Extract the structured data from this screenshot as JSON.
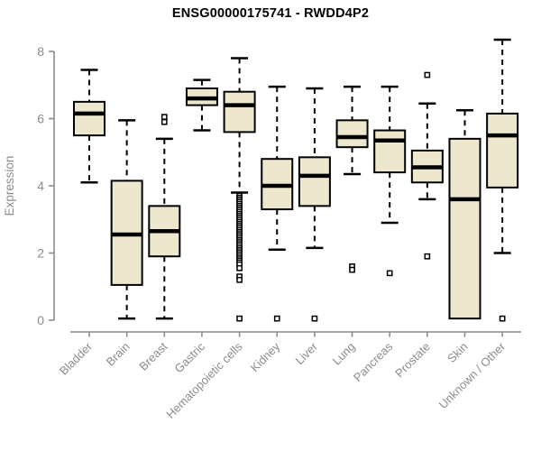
{
  "title": "ENSG00000175741 - RWDD4P2",
  "chart_data": {
    "type": "boxplot",
    "title": "ENSG00000175741 - RWDD4P2",
    "xlabel": "",
    "ylabel": "Expression",
    "ylim": [
      0,
      8
    ],
    "yticks": [
      0,
      2,
      4,
      6,
      8
    ],
    "grid": false,
    "legend": "none",
    "categories": [
      "Bladder",
      "Brain",
      "Breast",
      "Gastric",
      "Hematopoietic cells",
      "Kidney",
      "Liver",
      "Lung",
      "Pancreas",
      "Prostate",
      "Skin",
      "Unknown / Other"
    ],
    "series": [
      {
        "name": "Bladder",
        "whisker_low": 4.1,
        "q1": 5.5,
        "median": 6.15,
        "q3": 6.5,
        "whisker_high": 7.45,
        "outliers": []
      },
      {
        "name": "Brain",
        "whisker_low": 0.05,
        "q1": 1.05,
        "median": 2.55,
        "q3": 4.15,
        "whisker_high": 5.95,
        "outliers": []
      },
      {
        "name": "Breast",
        "whisker_low": 0.05,
        "q1": 1.9,
        "median": 2.65,
        "q3": 3.4,
        "whisker_high": 5.4,
        "outliers": [
          6.05,
          5.9
        ]
      },
      {
        "name": "Gastric",
        "whisker_low": 5.65,
        "q1": 6.4,
        "median": 6.6,
        "q3": 6.9,
        "whisker_high": 7.15,
        "outliers": []
      },
      {
        "name": "Hematopoietic cells",
        "whisker_low": 3.8,
        "q1": 5.6,
        "median": 6.4,
        "q3": 6.8,
        "whisker_high": 7.8,
        "outliers": [
          3.7,
          3.64,
          3.58,
          3.52,
          3.46,
          3.4,
          3.34,
          3.28,
          3.22,
          3.16,
          3.1,
          3.04,
          2.98,
          2.92,
          2.86,
          2.8,
          2.74,
          2.68,
          2.62,
          2.56,
          2.5,
          2.44,
          2.38,
          2.32,
          2.26,
          2.2,
          2.14,
          2.08,
          2.02,
          1.96,
          1.9,
          1.84,
          1.78,
          1.72,
          1.66,
          1.55,
          1.3,
          1.2,
          0.05
        ]
      },
      {
        "name": "Kidney",
        "whisker_low": 2.1,
        "q1": 3.3,
        "median": 4.0,
        "q3": 4.8,
        "whisker_high": 6.95,
        "outliers": [
          0.05
        ]
      },
      {
        "name": "Liver",
        "whisker_low": 2.15,
        "q1": 3.4,
        "median": 4.3,
        "q3": 4.85,
        "whisker_high": 6.9,
        "outliers": [
          0.05
        ]
      },
      {
        "name": "Lung",
        "whisker_low": 4.35,
        "q1": 5.15,
        "median": 5.45,
        "q3": 5.95,
        "whisker_high": 6.95,
        "outliers": [
          1.6,
          1.5
        ]
      },
      {
        "name": "Pancreas",
        "whisker_low": 2.9,
        "q1": 4.4,
        "median": 5.35,
        "q3": 5.65,
        "whisker_high": 6.95,
        "outliers": [
          1.4
        ]
      },
      {
        "name": "Prostate",
        "whisker_low": 3.6,
        "q1": 4.1,
        "median": 4.55,
        "q3": 5.05,
        "whisker_high": 6.45,
        "outliers": [
          7.3,
          1.9
        ]
      },
      {
        "name": "Skin",
        "whisker_low": 0.05,
        "q1": 0.05,
        "median": 3.6,
        "q3": 5.4,
        "whisker_high": 6.25,
        "outliers": []
      },
      {
        "name": "Unknown / Other",
        "whisker_low": 2.0,
        "q1": 3.95,
        "median": 5.5,
        "q3": 6.15,
        "whisker_high": 8.35,
        "outliers": [
          0.05
        ]
      }
    ],
    "style": {
      "box_fill": "#EDE8CD",
      "box_stroke": "#000000",
      "median_color": "#000000",
      "whisker_color": "#000000",
      "whisker_style": "dashed",
      "axis_color": "#8C8C8C",
      "label_color": "#8C8C8C",
      "title_color": "#000000",
      "background": "#FFFFFF"
    }
  }
}
